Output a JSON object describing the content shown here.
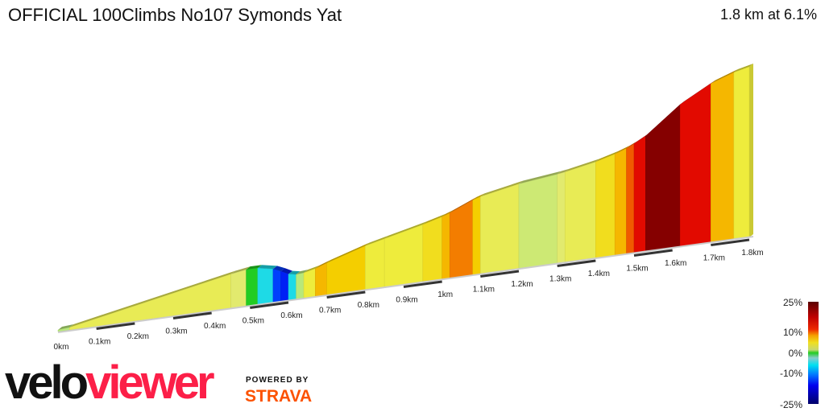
{
  "header": {
    "title": "OFFICIAL 100Climbs No107 Symonds Yat",
    "summary": "1.8 km at 6.1%"
  },
  "branding": {
    "logo_part1": "velo",
    "logo_part2": "viewer",
    "powered_by": "POWERED BY",
    "strava": "STRAVA"
  },
  "chart_data": {
    "type": "area",
    "title": "OFFICIAL 100Climbs No107 Symonds Yat",
    "xlabel": "",
    "ylabel": "",
    "xlim": [
      0,
      1.8
    ],
    "x_tick_labels": [
      "0km",
      "0.1km",
      "0.2km",
      "0.3km",
      "0.4km",
      "0.5km",
      "0.6km",
      "0.7km",
      "0.8km",
      "0.9km",
      "1km",
      "1.1km",
      "1.2km",
      "1.3km",
      "1.4km",
      "1.5km",
      "1.6km",
      "1.7km",
      "1.8km"
    ],
    "color_scale": {
      "labels": [
        "25%",
        "10%",
        "0%",
        "-10%",
        "-25%"
      ],
      "range": [
        -25,
        25
      ]
    },
    "segments": [
      {
        "start_km": 0.0,
        "end_km": 0.03,
        "gradient": 2
      },
      {
        "start_km": 0.03,
        "end_km": 0.45,
        "gradient": 5
      },
      {
        "start_km": 0.45,
        "end_km": 0.49,
        "gradient": 4
      },
      {
        "start_km": 0.49,
        "end_km": 0.52,
        "gradient": 0
      },
      {
        "start_km": 0.52,
        "end_km": 0.56,
        "gradient": -5
      },
      {
        "start_km": 0.56,
        "end_km": 0.58,
        "gradient": -11
      },
      {
        "start_km": 0.58,
        "end_km": 0.6,
        "gradient": -13
      },
      {
        "start_km": 0.6,
        "end_km": 0.62,
        "gradient": -5
      },
      {
        "start_km": 0.62,
        "end_km": 0.64,
        "gradient": 2
      },
      {
        "start_km": 0.64,
        "end_km": 0.67,
        "gradient": 6
      },
      {
        "start_km": 0.67,
        "end_km": 0.7,
        "gradient": 9
      },
      {
        "start_km": 0.7,
        "end_km": 0.8,
        "gradient": 8
      },
      {
        "start_km": 0.8,
        "end_km": 0.85,
        "gradient": 6
      },
      {
        "start_km": 0.85,
        "end_km": 0.95,
        "gradient": 6
      },
      {
        "start_km": 0.95,
        "end_km": 1.0,
        "gradient": 7
      },
      {
        "start_km": 1.0,
        "end_km": 1.02,
        "gradient": 9
      },
      {
        "start_km": 1.02,
        "end_km": 1.08,
        "gradient": 11
      },
      {
        "start_km": 1.08,
        "end_km": 1.1,
        "gradient": 8
      },
      {
        "start_km": 1.1,
        "end_km": 1.2,
        "gradient": 5
      },
      {
        "start_km": 1.2,
        "end_km": 1.3,
        "gradient": 3
      },
      {
        "start_km": 1.3,
        "end_km": 1.32,
        "gradient": 4
      },
      {
        "start_km": 1.32,
        "end_km": 1.4,
        "gradient": 5
      },
      {
        "start_km": 1.4,
        "end_km": 1.45,
        "gradient": 7
      },
      {
        "start_km": 1.45,
        "end_km": 1.48,
        "gradient": 9
      },
      {
        "start_km": 1.48,
        "end_km": 1.5,
        "gradient": 12
      },
      {
        "start_km": 1.5,
        "end_km": 1.53,
        "gradient": 14
      },
      {
        "start_km": 1.53,
        "end_km": 1.62,
        "gradient": 20
      },
      {
        "start_km": 1.62,
        "end_km": 1.7,
        "gradient": 14
      },
      {
        "start_km": 1.7,
        "end_km": 1.76,
        "gradient": 9
      },
      {
        "start_km": 1.76,
        "end_km": 1.8,
        "gradient": 6
      }
    ]
  }
}
